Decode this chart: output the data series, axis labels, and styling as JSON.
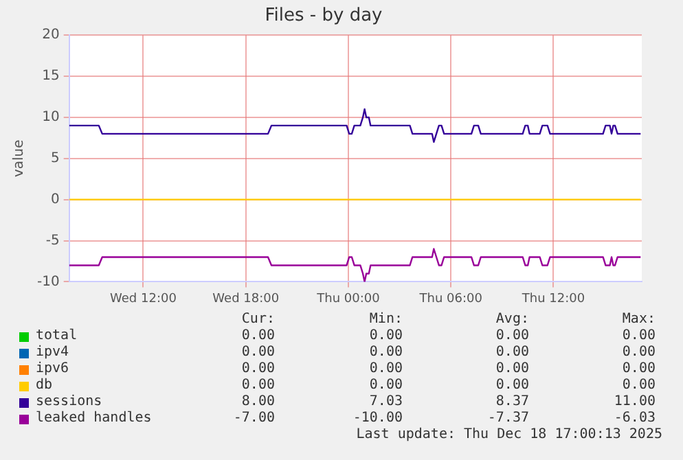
{
  "chart_data": {
    "type": "line",
    "title": "Files - by day",
    "ylabel": "value",
    "xlim": [
      "2025-12-17T07:40",
      "2025-12-18T17:10"
    ],
    "xticks": [
      {
        "value": "2025-12-17T12:00",
        "label": "Wed 12:00"
      },
      {
        "value": "2025-12-17T18:00",
        "label": "Wed 18:00"
      },
      {
        "value": "2025-12-18T00:00",
        "label": "Thu 00:00"
      },
      {
        "value": "2025-12-18T06:00",
        "label": "Thu 06:00"
      },
      {
        "value": "2025-12-18T12:00",
        "label": "Thu 12:00"
      }
    ],
    "ylim": [
      -10,
      20
    ],
    "yticks": [
      -10,
      -5,
      0,
      5,
      10,
      15,
      20
    ],
    "grid": true,
    "legend": "bottom",
    "marker": "none",
    "line_style": "solid",
    "series": [
      {
        "name": "total",
        "color": "#00cc00"
      },
      {
        "name": "ipv4",
        "color": "#0066b3"
      },
      {
        "name": "ipv6",
        "color": "#ff8000"
      },
      {
        "name": "db",
        "color": "#ffcc00",
        "x": [
          "2025-12-17T07:40",
          "2025-12-18T17:06"
        ],
        "values": [
          0,
          0
        ]
      },
      {
        "name": "sessions",
        "color": "#330099",
        "x": [
          "2025-12-17T07:40",
          "2025-12-17T09:24",
          "2025-12-17T09:36",
          "2025-12-17T19:18",
          "2025-12-17T19:30",
          "2025-12-17T23:54",
          "2025-12-18T00:03",
          "2025-12-18T00:12",
          "2025-12-18T00:21",
          "2025-12-18T00:42",
          "2025-12-18T00:51",
          "2025-12-18T00:57",
          "2025-12-18T01:03",
          "2025-12-18T01:12",
          "2025-12-18T01:18",
          "2025-12-18T03:36",
          "2025-12-18T03:45",
          "2025-12-18T04:54",
          "2025-12-18T05:00",
          "2025-12-18T05:18",
          "2025-12-18T05:27",
          "2025-12-18T05:36",
          "2025-12-18T07:12",
          "2025-12-18T07:21",
          "2025-12-18T07:36",
          "2025-12-18T07:45",
          "2025-12-18T10:12",
          "2025-12-18T10:21",
          "2025-12-18T10:30",
          "2025-12-18T10:36",
          "2025-12-18T11:12",
          "2025-12-18T11:21",
          "2025-12-18T11:39",
          "2025-12-18T11:48",
          "2025-12-18T14:54",
          "2025-12-18T15:03",
          "2025-12-18T15:18",
          "2025-12-18T15:24",
          "2025-12-18T15:30",
          "2025-12-18T15:36",
          "2025-12-18T15:45",
          "2025-12-18T17:06"
        ],
        "values": [
          9,
          9,
          8,
          8,
          9,
          9,
          8,
          8,
          9,
          9,
          10,
          11,
          10,
          10,
          9,
          9,
          8,
          8,
          7,
          9,
          9,
          8,
          8,
          9,
          9,
          8,
          8,
          9,
          9,
          8,
          8,
          9,
          9,
          8,
          8,
          9,
          9,
          8,
          9,
          9,
          8,
          8
        ]
      },
      {
        "name": "leaked handles",
        "color": "#990099",
        "x": [
          "2025-12-17T07:40",
          "2025-12-17T09:24",
          "2025-12-17T09:36",
          "2025-12-17T19:18",
          "2025-12-17T19:30",
          "2025-12-17T23:54",
          "2025-12-18T00:03",
          "2025-12-18T00:12",
          "2025-12-18T00:21",
          "2025-12-18T00:42",
          "2025-12-18T00:51",
          "2025-12-18T00:57",
          "2025-12-18T01:03",
          "2025-12-18T01:12",
          "2025-12-18T01:18",
          "2025-12-18T03:36",
          "2025-12-18T03:45",
          "2025-12-18T04:54",
          "2025-12-18T05:00",
          "2025-12-18T05:18",
          "2025-12-18T05:27",
          "2025-12-18T05:36",
          "2025-12-18T07:12",
          "2025-12-18T07:21",
          "2025-12-18T07:36",
          "2025-12-18T07:45",
          "2025-12-18T10:12",
          "2025-12-18T10:21",
          "2025-12-18T10:30",
          "2025-12-18T10:36",
          "2025-12-18T11:12",
          "2025-12-18T11:21",
          "2025-12-18T11:39",
          "2025-12-18T11:48",
          "2025-12-18T14:54",
          "2025-12-18T15:03",
          "2025-12-18T15:18",
          "2025-12-18T15:24",
          "2025-12-18T15:30",
          "2025-12-18T15:36",
          "2025-12-18T15:45",
          "2025-12-18T17:06"
        ],
        "values": [
          -8,
          -8,
          -7,
          -7,
          -8,
          -8,
          -7,
          -7,
          -8,
          -8,
          -9,
          -10,
          -9,
          -9,
          -8,
          -8,
          -7,
          -7,
          -6,
          -8,
          -8,
          -7,
          -7,
          -8,
          -8,
          -7,
          -7,
          -8,
          -8,
          -7,
          -7,
          -8,
          -8,
          -7,
          -7,
          -8,
          -8,
          -7,
          -8,
          -8,
          -7,
          -7
        ]
      }
    ],
    "annotations": [
      "Cur:",
      "Min:",
      "Avg:",
      "Max:",
      "0.00",
      "0.00",
      "0.00",
      "0.00",
      "0.00",
      "0.00",
      "0.00",
      "0.00",
      "0.00",
      "0.00",
      "0.00",
      "0.00",
      "0.00",
      "0.00",
      "0.00",
      "0.00",
      "8.00",
      "7.03",
      "8.37",
      "11.00",
      "-7.00",
      "-10.00",
      "-7.37",
      "-6.03",
      "Last update: Thu Dec 18 17:00:13 2025"
    ]
  }
}
